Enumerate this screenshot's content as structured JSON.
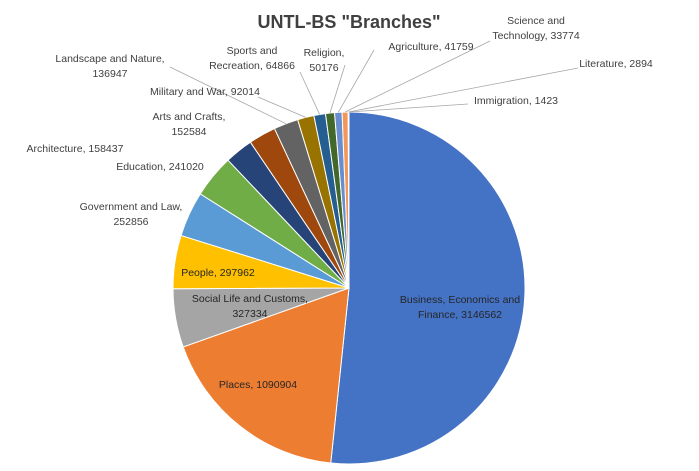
{
  "chart_data": {
    "type": "pie",
    "title": "UNTL-BS \"Branches\"",
    "slices": [
      {
        "name": "Business, Economics and Finance",
        "value": 3146562,
        "color": "#4472C4"
      },
      {
        "name": "Places",
        "value": 1090904,
        "color": "#ED7D31"
      },
      {
        "name": "Social Life and Customs",
        "value": 327334,
        "color": "#A5A5A5"
      },
      {
        "name": "People",
        "value": 297962,
        "color": "#FFC000"
      },
      {
        "name": "Government and Law",
        "value": 252856,
        "color": "#5B9BD5"
      },
      {
        "name": "Education",
        "value": 241020,
        "color": "#70AD47"
      },
      {
        "name": "Architecture",
        "value": 158437,
        "color": "#264478"
      },
      {
        "name": "Arts and Crafts",
        "value": 152584,
        "color": "#9E480E"
      },
      {
        "name": "Landscape and Nature",
        "value": 136947,
        "color": "#636363"
      },
      {
        "name": "Military and War",
        "value": 92014,
        "color": "#997300"
      },
      {
        "name": "Sports and Recreation",
        "value": 64866,
        "color": "#255E91"
      },
      {
        "name": "Religion",
        "value": 50176,
        "color": "#43682B"
      },
      {
        "name": "Agriculture",
        "value": 41759,
        "color": "#698ED0"
      },
      {
        "name": "Science and Technology",
        "value": 33774,
        "color": "#F1975A"
      },
      {
        "name": "Literature",
        "value": 2894,
        "color": "#B7B7B7"
      },
      {
        "name": "Immigration",
        "value": 1423,
        "color": "#FFCD33"
      }
    ],
    "labels": [
      {
        "lines": [
          "Business, Economics and",
          "Finance, 3146562"
        ]
      },
      {
        "lines": [
          "Places, 1090904"
        ]
      },
      {
        "lines": [
          "Social Life and Customs,",
          "327334"
        ]
      },
      {
        "lines": [
          "People, 297962"
        ]
      },
      {
        "lines": [
          "Government and Law,",
          "252856"
        ]
      },
      {
        "lines": [
          "Education, 241020"
        ]
      },
      {
        "lines": [
          "Architecture, 158437"
        ]
      },
      {
        "lines": [
          "Arts and Crafts,",
          "152584"
        ]
      },
      {
        "lines": [
          "Landscape and Nature,",
          "136947"
        ]
      },
      {
        "lines": [
          "Military and War, 92014"
        ]
      },
      {
        "lines": [
          "Sports and",
          "Recreation, 64866"
        ]
      },
      {
        "lines": [
          "Religion,",
          "50176"
        ]
      },
      {
        "lines": [
          "Agriculture, 41759"
        ]
      },
      {
        "lines": [
          "Science and",
          "Technology, 33774"
        ]
      },
      {
        "lines": [
          "Literature, 2894"
        ]
      },
      {
        "lines": [
          "Immigration, 1423"
        ]
      }
    ],
    "legend": "none",
    "start_angle": "12 o'clock",
    "direction": "clockwise"
  }
}
